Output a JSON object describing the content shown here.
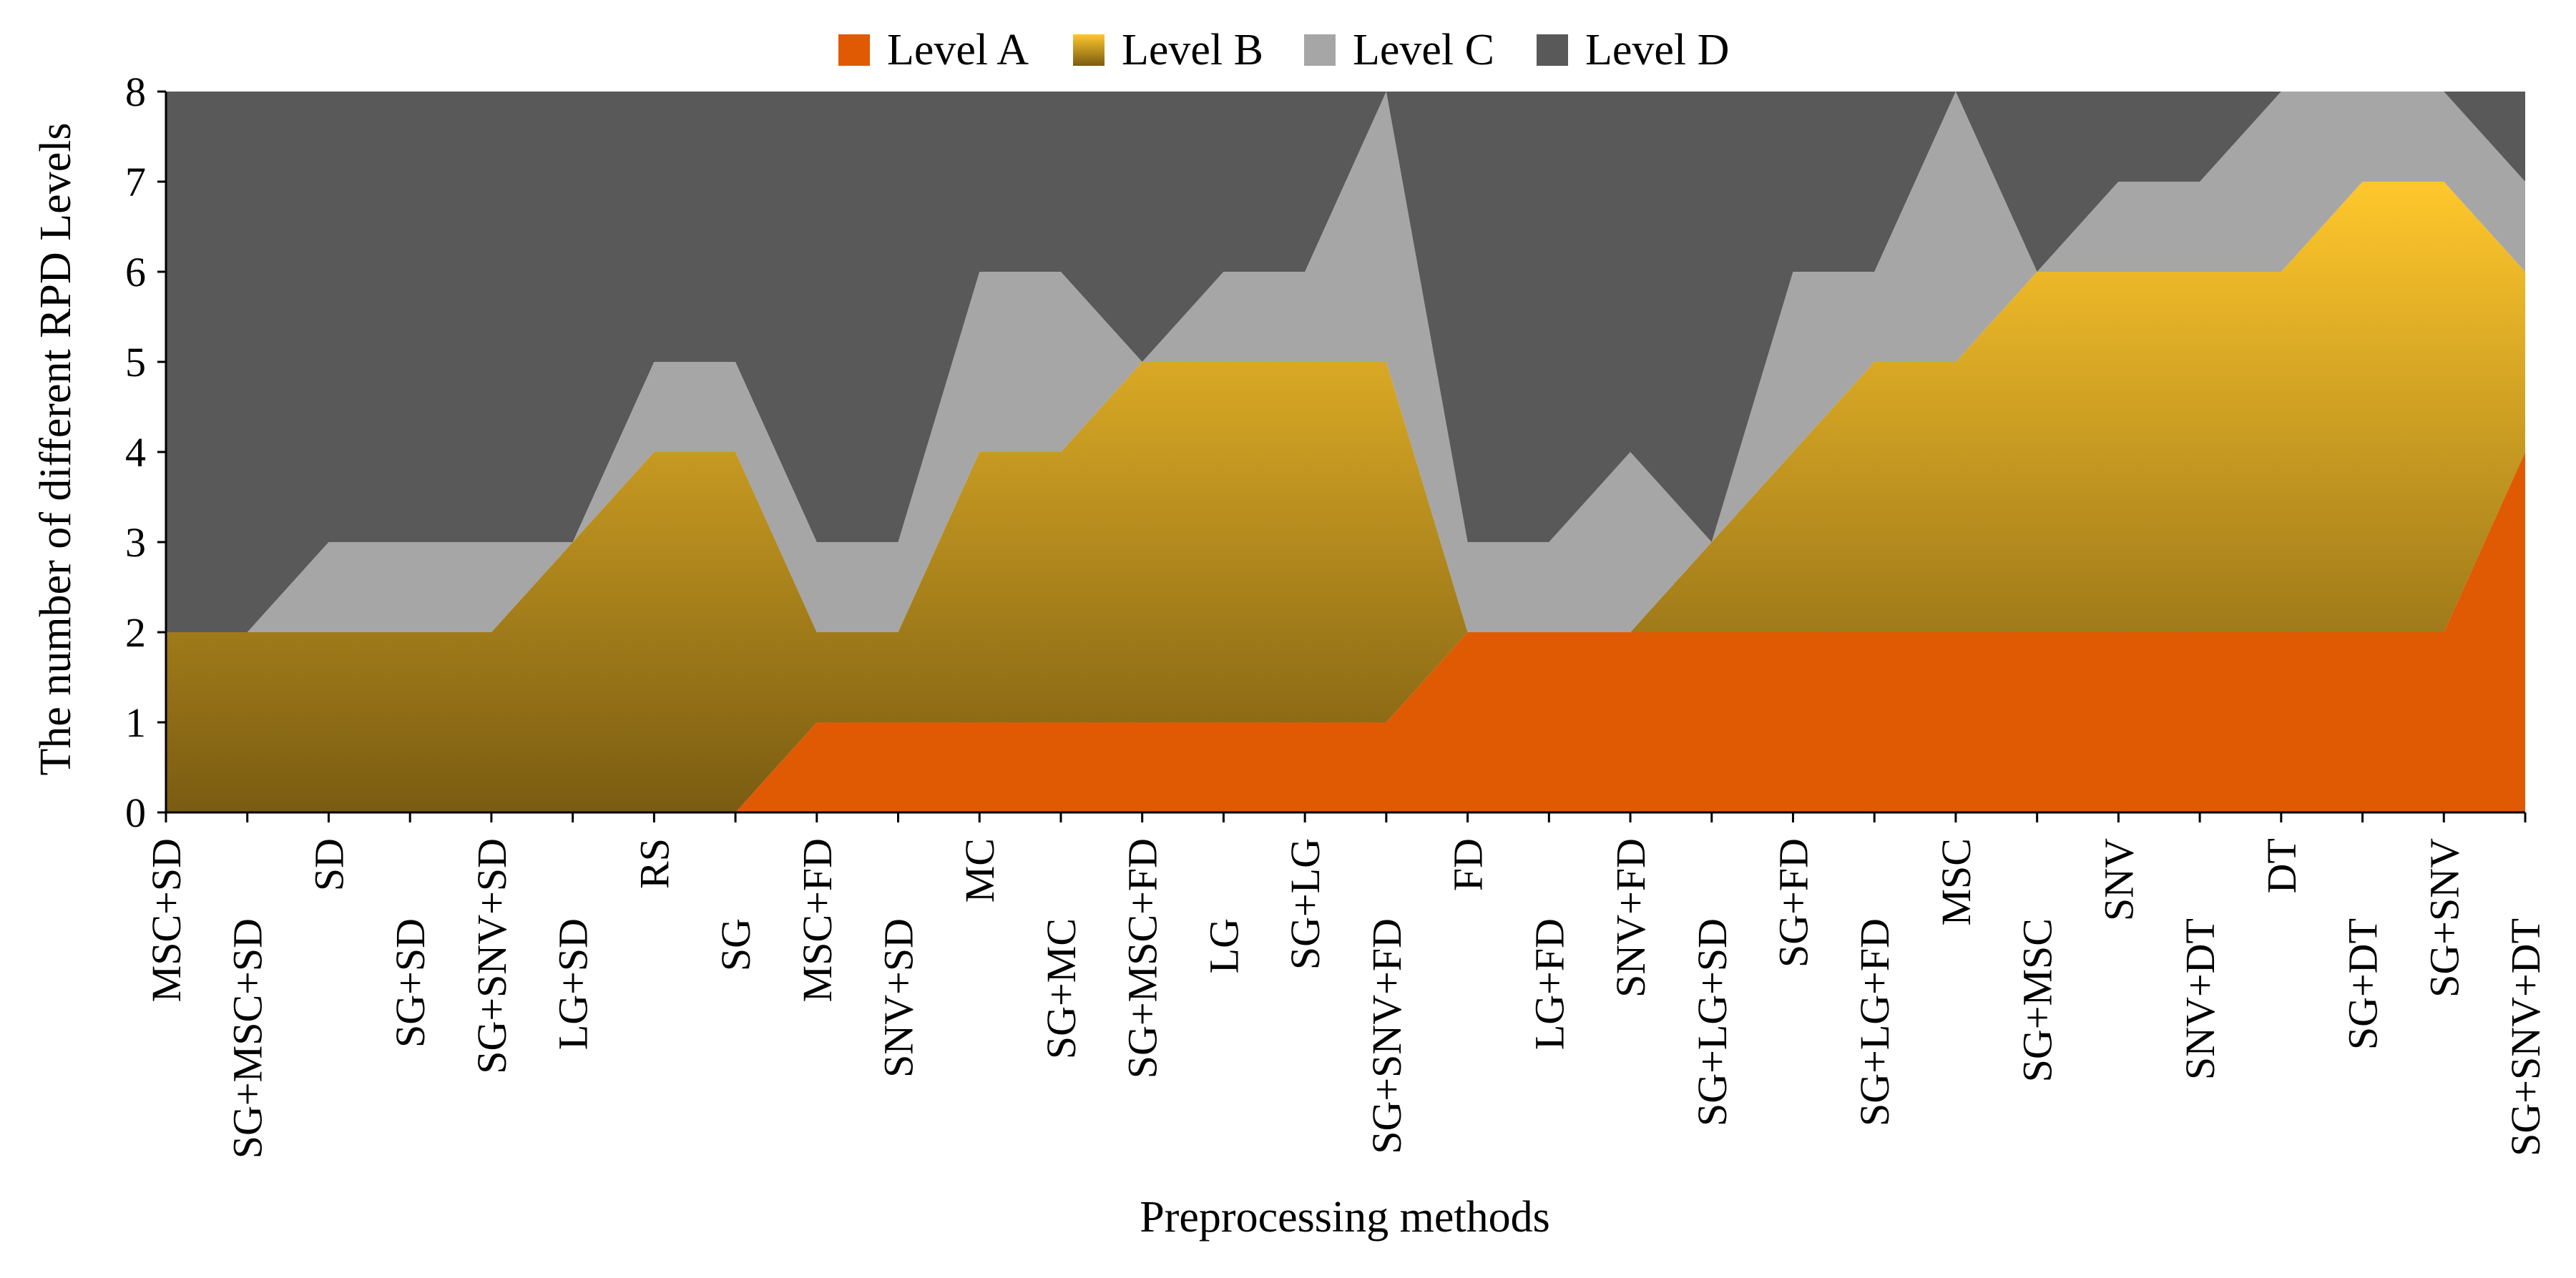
{
  "chart_data": {
    "type": "area",
    "stacked": true,
    "title": "",
    "xlabel": "Preprocessing methods",
    "ylabel": "The number of different RPD Levels",
    "ylim": [
      0,
      8
    ],
    "yticks": [
      0,
      1,
      2,
      3,
      4,
      5,
      6,
      7,
      8
    ],
    "legend_position": "top-center",
    "categories": [
      "MSC+SD",
      "SG+MSC+SD",
      "SD",
      "SG+SD",
      "SG+SNV+SD",
      "LG+SD",
      "RS",
      "SG",
      "MSC+FD",
      "SNV+SD",
      "MC",
      "SG+MC",
      "SG+MSC+FD",
      "LG",
      "SG+LG",
      "SG+SNV+FD",
      "FD",
      "LG+FD",
      "SNV+FD",
      "SG+LG+SD",
      "SG+FD",
      "SG+LG+FD",
      "MSC",
      "SG+MSC",
      "SNV",
      "SNV+DT",
      "DT",
      "SG+DT",
      "SG+SNV",
      "SG+SNV+DT"
    ],
    "series": [
      {
        "name": "Level A",
        "color": "#E05A04",
        "values": [
          0,
          0,
          0,
          0,
          0,
          0,
          0,
          0,
          1,
          1,
          1,
          1,
          1,
          1,
          1,
          1,
          2,
          2,
          2,
          2,
          2,
          2,
          2,
          2,
          2,
          2,
          2,
          2,
          2,
          4
        ]
      },
      {
        "name": "Level B",
        "color": "#FFC72C",
        "color_dark": "#7A5C12",
        "values": [
          2,
          2,
          2,
          2,
          2,
          3,
          4,
          4,
          1,
          1,
          3,
          3,
          4,
          4,
          4,
          4,
          0,
          0,
          0,
          1,
          2,
          3,
          3,
          4,
          4,
          4,
          4,
          5,
          5,
          2
        ]
      },
      {
        "name": "Level C",
        "color": "#A6A6A6",
        "values": [
          0,
          0,
          1,
          1,
          1,
          0,
          1,
          1,
          1,
          1,
          2,
          2,
          0,
          1,
          1,
          3,
          1,
          1,
          2,
          0,
          2,
          1,
          3,
          0,
          1,
          1,
          2,
          1,
          1,
          1
        ]
      },
      {
        "name": "Level D",
        "color": "#595959",
        "values": [
          6,
          6,
          5,
          5,
          5,
          5,
          3,
          3,
          5,
          5,
          2,
          2,
          3,
          2,
          2,
          0,
          5,
          5,
          4,
          5,
          2,
          2,
          0,
          2,
          1,
          1,
          0,
          0,
          0,
          1
        ]
      }
    ]
  }
}
